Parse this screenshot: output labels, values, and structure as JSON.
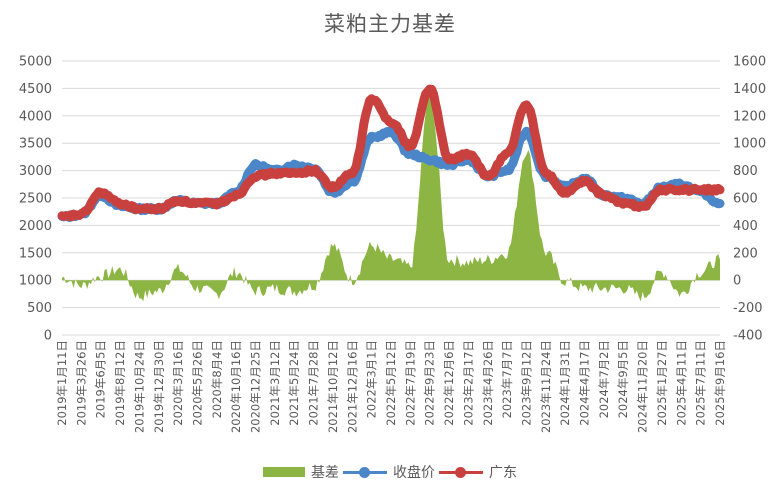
{
  "title": "菜粕主力基差",
  "legend": [
    {
      "name": "基差",
      "type": "area",
      "color": "#8DB544",
      "axis": "right"
    },
    {
      "name": "收盘价",
      "type": "line",
      "color": "#4A86C8",
      "axis": "left"
    },
    {
      "name": "广东",
      "type": "line",
      "color": "#C9413F",
      "axis": "left"
    }
  ],
  "chart_data": {
    "type": "line",
    "title": "菜粕主力基差",
    "xlabel": "",
    "ylabel_left": "",
    "ylabel_right": "",
    "ylim_left": [
      0,
      5000
    ],
    "ylim_right": [
      -400,
      1600
    ],
    "yticks_left": [
      0,
      500,
      1000,
      1500,
      2000,
      2500,
      3000,
      3500,
      4000,
      4500,
      5000
    ],
    "yticks_right": [
      -400,
      -200,
      0,
      200,
      400,
      600,
      800,
      1000,
      1200,
      1400,
      1600
    ],
    "grid": true,
    "legend_position": "bottom",
    "categories": [
      "2019年1月11日",
      "2019年3月26日",
      "2019年6月5日",
      "2019年8月12日",
      "2019年10月24日",
      "2019年12月30日",
      "2020年3月16日",
      "2020年5月26日",
      "2020年8月4日",
      "2020年10月16日",
      "2020年12月25日",
      "2021年3月12日",
      "2021年5月24日",
      "2021年7月28日",
      "2021年10月12日",
      "2021年12月16日",
      "2022年3月1日",
      "2022年5月12日",
      "2022年7月19日",
      "2022年9月23日",
      "2022年12月6日",
      "2023年2月17日",
      "2023年4月26日",
      "2023年7月7日",
      "2023年9月12日",
      "2023年11月24日",
      "2024年1月31日",
      "2024年4月17日",
      "2024年7月2日",
      "2024年9月5日",
      "2024年11月20日",
      "2025年1月27日",
      "2025年4月11日",
      "2025年7月11日",
      "2025年9月16日"
    ],
    "series": [
      {
        "name": "收盘价",
        "axis": "left",
        "color": "#4A86C8",
        "values": [
          2150,
          2200,
          2550,
          2350,
          2300,
          2300,
          2450,
          2400,
          2400,
          2600,
          3100,
          3000,
          3100,
          3050,
          2600,
          2800,
          3600,
          3700,
          3300,
          3200,
          3100,
          3200,
          2900,
          3000,
          3700,
          2900,
          2700,
          2850,
          2550,
          2500,
          2400,
          2700,
          2750,
          2600,
          2400
        ]
      },
      {
        "name": "广东",
        "axis": "left",
        "color": "#C9413F",
        "values": [
          2150,
          2200,
          2600,
          2400,
          2300,
          2300,
          2450,
          2400,
          2400,
          2550,
          2900,
          2950,
          2950,
          3000,
          2700,
          2950,
          4300,
          3900,
          3450,
          4500,
          3200,
          3300,
          2900,
          3300,
          4200,
          2950,
          2600,
          2800,
          2550,
          2400,
          2350,
          2650,
          2650,
          2650,
          2650
        ]
      },
      {
        "name": "基差",
        "axis": "right",
        "color": "#8DB544",
        "values": [
          20,
          -40,
          30,
          80,
          -120,
          -80,
          80,
          -60,
          -100,
          60,
          -80,
          -60,
          -80,
          -40,
          250,
          0,
          250,
          150,
          100,
          1350,
          150,
          130,
          150,
          200,
          950,
          200,
          -10,
          -60,
          -60,
          -60,
          -120,
          60,
          -100,
          60,
          150
        ]
      }
    ]
  }
}
